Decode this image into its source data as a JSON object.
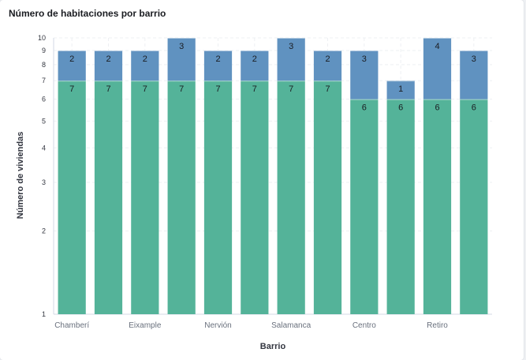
{
  "panel": {
    "title": "Número de habitaciones por barrio"
  },
  "chart_data": {
    "type": "bar",
    "stacked": true,
    "yscale": "log",
    "ylim": [
      1,
      10
    ],
    "yticks": [
      1,
      2,
      3,
      4,
      5,
      6,
      7,
      8,
      9,
      10
    ],
    "xlabel": "Barrio",
    "ylabel": "Número de viviendas",
    "grid": true,
    "categories": [
      "Chamberí",
      "",
      "Eixample",
      "",
      "Nervión",
      "",
      "Salamanca",
      "",
      "Centro",
      "",
      "Retiro",
      ""
    ],
    "series": [
      {
        "color": "#54b399",
        "values": [
          7,
          7,
          7,
          7,
          7,
          7,
          7,
          7,
          6,
          6,
          6,
          6
        ]
      },
      {
        "color": "#6092c0",
        "values": [
          2,
          2,
          2,
          3,
          2,
          2,
          3,
          2,
          3,
          1,
          4,
          3
        ]
      }
    ]
  }
}
